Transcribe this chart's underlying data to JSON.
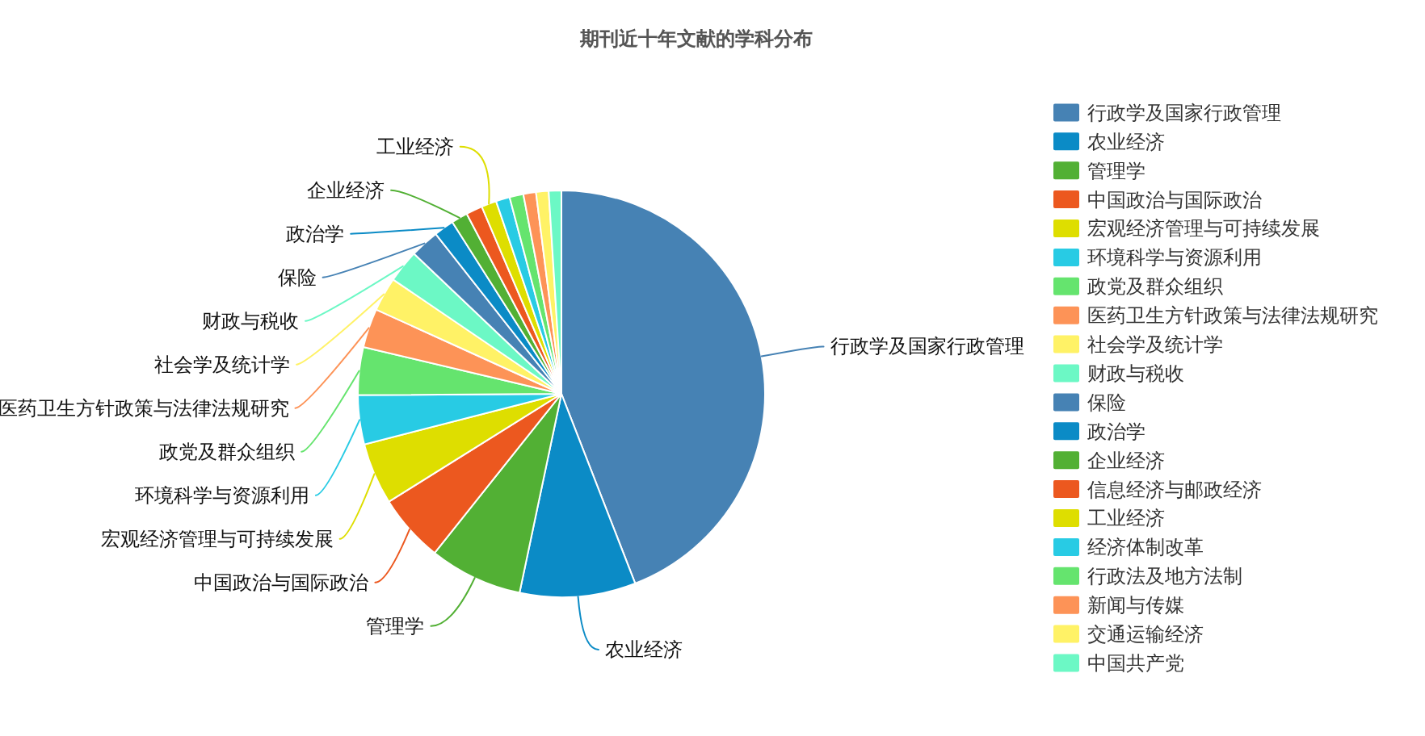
{
  "chart_data": {
    "type": "pie",
    "title": "期刊近十年文献的学科分布",
    "categories": [
      "行政学及国家行政管理",
      "农业经济",
      "管理学",
      "中国政治与国际政治",
      "宏观经济管理与可持续发展",
      "环境科学与资源利用",
      "政党及群众组织",
      "医药卫生方针政策与法律法规研究",
      "社会学及统计学",
      "财政与税收",
      "保险",
      "政治学",
      "企业经济",
      "信息经济与邮政经济",
      "工业经济",
      "经济体制改革",
      "行政法及地方法制",
      "新闻与传媒",
      "交通运输经济",
      "中国共产党"
    ],
    "values": [
      44.1,
      9.2,
      7.4,
      5.4,
      4.9,
      3.9,
      3.8,
      3.1,
      2.7,
      2.6,
      2.3,
      1.6,
      1.3,
      1.3,
      1.2,
      1.1,
      1.1,
      1.0,
      1.0,
      1.0
    ],
    "colors": [
      "#4682b4",
      "#0b8bc6",
      "#52b034",
      "#ec581f",
      "#dede00",
      "#28cbe4",
      "#65e46e",
      "#fd9357",
      "#fff266",
      "#6cf8c5",
      "#4682b4",
      "#0b8bc6",
      "#52b034",
      "#ec581f",
      "#dede00",
      "#28cbe4",
      "#65e46e",
      "#fd9357",
      "#fff266",
      "#6cf8c5"
    ],
    "value_labels": [
      "行政学及国家行政管理",
      "农业经济",
      "管理学",
      "中国政治与国际政治",
      "宏观经济管理与可持续发展",
      "环境科学与资源利用",
      "政党及群众组织",
      "医药卫生方针政策与法律法规研究",
      "社会学及统计学",
      "财政与税收",
      "保险",
      "政治学",
      "企业经济",
      null,
      "工业经济",
      null,
      null,
      null,
      null,
      null
    ],
    "legend": "right"
  }
}
